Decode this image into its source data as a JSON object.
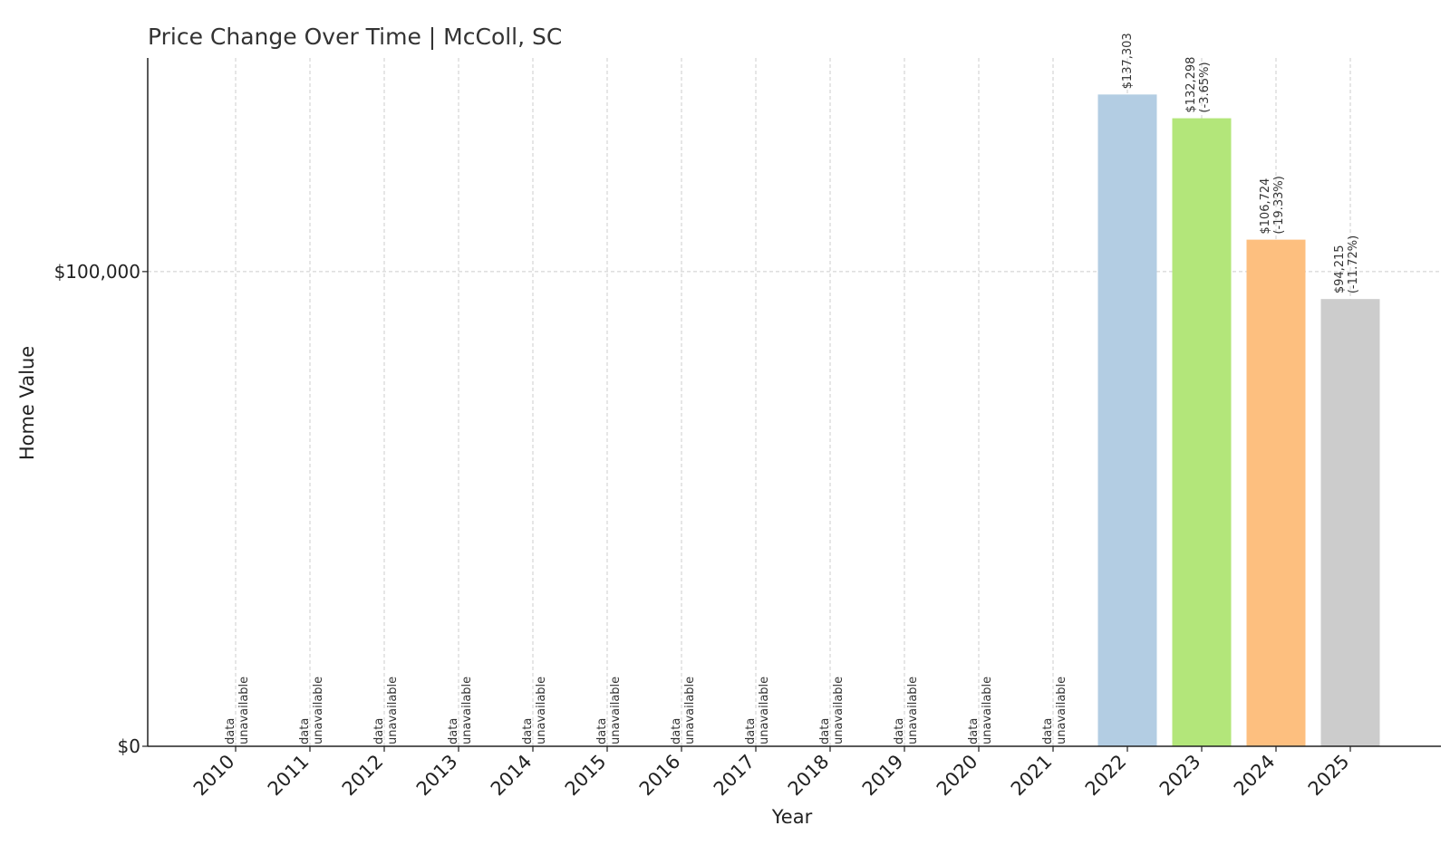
{
  "chart_data": {
    "type": "bar",
    "title": "Price Change Over Time | McColl, SC",
    "xlabel": "Year",
    "ylabel": "Home Value",
    "categories": [
      "2010",
      "2011",
      "2012",
      "2013",
      "2014",
      "2015",
      "2016",
      "2017",
      "2018",
      "2019",
      "2020",
      "2021",
      "2022",
      "2023",
      "2024",
      "2025"
    ],
    "values": [
      null,
      null,
      null,
      null,
      null,
      null,
      null,
      null,
      null,
      null,
      null,
      null,
      137303,
      132298,
      106724,
      94215
    ],
    "value_labels": [
      "",
      "",
      "",
      "",
      "",
      "",
      "",
      "",
      "",
      "",
      "",
      "",
      "$137,303",
      "$132,298",
      "$106,724",
      "$94,215"
    ],
    "change_labels": [
      "",
      "",
      "",
      "",
      "",
      "",
      "",
      "",
      "",
      "",
      "",
      "",
      "",
      "(-3.65%)",
      "(-19.33%)",
      "(-11.72%)"
    ],
    "unavailable_text": [
      "data",
      "unavailable"
    ],
    "bar_colors": [
      "#b3cde3",
      "#b3e67a",
      "#fdbf7f",
      "#cccccc"
    ],
    "yticks": [
      0,
      100000
    ],
    "ytick_labels": [
      "$0",
      "$100,000"
    ],
    "ylim": [
      0,
      145000
    ],
    "grid": true,
    "legend": "none"
  }
}
